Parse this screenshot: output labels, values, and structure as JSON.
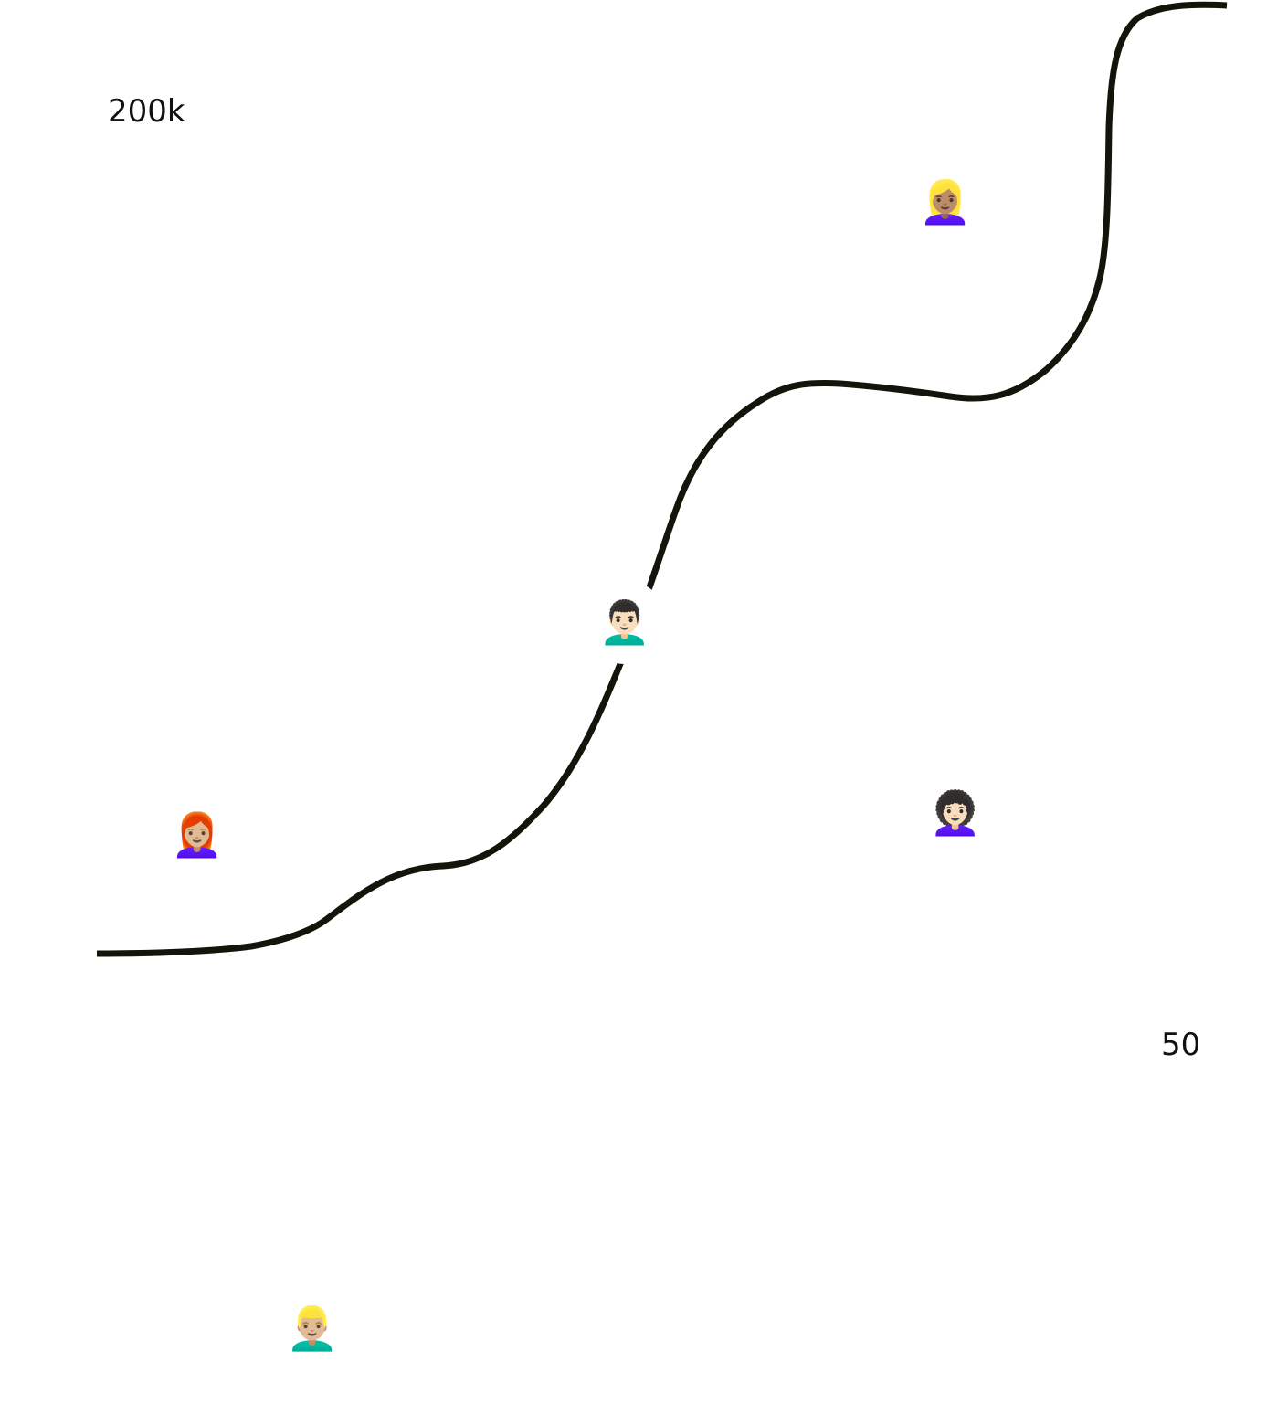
{
  "axis": {
    "y_top_label": "200k",
    "x_right_label": "50"
  },
  "curve": {
    "color": "#15140a"
  },
  "avatars": [
    {
      "name": "blonde-ponytail-woman",
      "emoji": "👱🏽‍♀️"
    },
    {
      "name": "curly-hair-man",
      "emoji": "👨🏻‍🦱"
    },
    {
      "name": "dark-curly-hair-woman",
      "emoji": "👩🏻‍🦱"
    },
    {
      "name": "red-hair-woman",
      "emoji": "👩🏼‍🦰"
    },
    {
      "name": "blonde-man",
      "emoji": "👱🏼‍♂️"
    }
  ]
}
